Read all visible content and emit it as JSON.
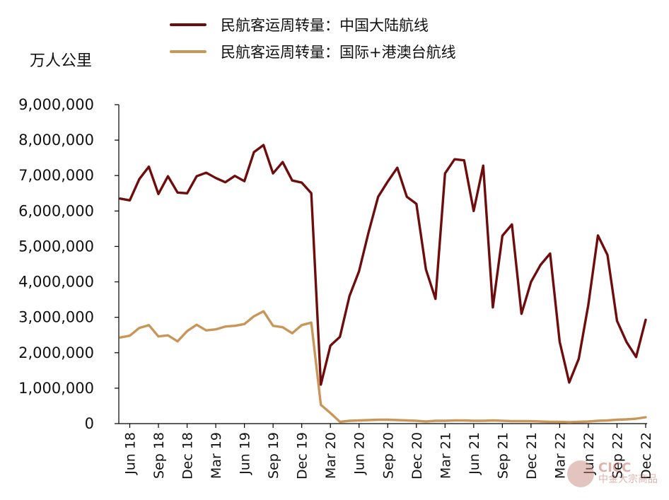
{
  "legend": {
    "domestic": "民航客运周转量：中国大陆航线",
    "international": "民航客运周转量：国际+港澳台航线"
  },
  "unit_label": "万人公里",
  "watermark": {
    "line1": "CICC",
    "line2": "中金大宗商品"
  },
  "colors": {
    "domestic": "#6e0d0d",
    "international": "#c9965a",
    "axis": "#000000"
  },
  "chart_data": {
    "type": "line",
    "title": "",
    "xlabel": "",
    "ylabel": "万人公里",
    "ylim": [
      0,
      9000000
    ],
    "yticks": [
      "0",
      "1,000,000",
      "2,000,000",
      "3,000,000",
      "4,000,000",
      "5,000,000",
      "6,000,000",
      "7,000,000",
      "8,000,000",
      "9,000,000"
    ],
    "x": [
      "2018-05",
      "2018-06",
      "2018-07",
      "2018-08",
      "2018-09",
      "2018-10",
      "2018-11",
      "2018-12",
      "2019-01",
      "2019-02",
      "2019-03",
      "2019-04",
      "2019-05",
      "2019-06",
      "2019-07",
      "2019-08",
      "2019-09",
      "2019-10",
      "2019-11",
      "2019-12",
      "2020-01",
      "2020-02",
      "2020-03",
      "2020-04",
      "2020-05",
      "2020-06",
      "2020-07",
      "2020-08",
      "2020-09",
      "2020-10",
      "2020-11",
      "2020-12",
      "2021-01",
      "2021-02",
      "2021-03",
      "2021-04",
      "2021-05",
      "2021-06",
      "2021-07",
      "2021-08",
      "2021-09",
      "2021-10",
      "2021-11",
      "2021-12",
      "2022-01",
      "2022-02",
      "2022-03",
      "2022-04",
      "2022-05",
      "2022-06",
      "2022-07",
      "2022-08",
      "2022-09",
      "2022-10",
      "2022-11",
      "2022-12"
    ],
    "xtick_labels": [
      {
        "label": "Jun 18",
        "index": 1
      },
      {
        "label": "Sep 18",
        "index": 4
      },
      {
        "label": "Dec 18",
        "index": 7
      },
      {
        "label": "Mar 19",
        "index": 10
      },
      {
        "label": "Jun 19",
        "index": 13
      },
      {
        "label": "Sep 19",
        "index": 16
      },
      {
        "label": "Dec 19",
        "index": 19
      },
      {
        "label": "Mar 20",
        "index": 22
      },
      {
        "label": "Jun 20",
        "index": 25
      },
      {
        "label": "Sep 20",
        "index": 28
      },
      {
        "label": "Dec 20",
        "index": 31
      },
      {
        "label": "Mar 21",
        "index": 34
      },
      {
        "label": "Jun 21",
        "index": 37
      },
      {
        "label": "Sep 21",
        "index": 40
      },
      {
        "label": "Dec 21",
        "index": 43
      },
      {
        "label": "Mar 22",
        "index": 46
      },
      {
        "label": "Jun 22",
        "index": 49
      },
      {
        "label": "Sep 22",
        "index": 52
      },
      {
        "label": "Dec 22",
        "index": 55
      }
    ],
    "series": [
      {
        "name": "民航客运周转量：中国大陆航线",
        "values": [
          6350000,
          6300000,
          6900000,
          7250000,
          6480000,
          6980000,
          6520000,
          6500000,
          6980000,
          7080000,
          6930000,
          6810000,
          6990000,
          6840000,
          7660000,
          7860000,
          7060000,
          7380000,
          6860000,
          6800000,
          6500000,
          1100000,
          2200000,
          2450000,
          3600000,
          4300000,
          5400000,
          6400000,
          6830000,
          7220000,
          6400000,
          6200000,
          4350000,
          3520000,
          7060000,
          7460000,
          7430000,
          6000000,
          7280000,
          3280000,
          5300000,
          5620000,
          3100000,
          4000000,
          4480000,
          4800000,
          2310000,
          1160000,
          1830000,
          3350000,
          5310000,
          4760000,
          2900000,
          2300000,
          1880000,
          2930000
        ]
      },
      {
        "name": "民航客运周转量：国际+港澳台航线",
        "values": [
          2430000,
          2480000,
          2700000,
          2780000,
          2460000,
          2490000,
          2320000,
          2610000,
          2790000,
          2630000,
          2660000,
          2740000,
          2760000,
          2810000,
          3030000,
          3170000,
          2760000,
          2720000,
          2550000,
          2780000,
          2850000,
          530000,
          300000,
          50000,
          80000,
          90000,
          100000,
          110000,
          110000,
          100000,
          90000,
          80000,
          60000,
          80000,
          80000,
          90000,
          90000,
          80000,
          80000,
          90000,
          80000,
          70000,
          70000,
          70000,
          60000,
          50000,
          50000,
          40000,
          50000,
          60000,
          80000,
          90000,
          110000,
          120000,
          140000,
          180000
        ]
      }
    ]
  }
}
